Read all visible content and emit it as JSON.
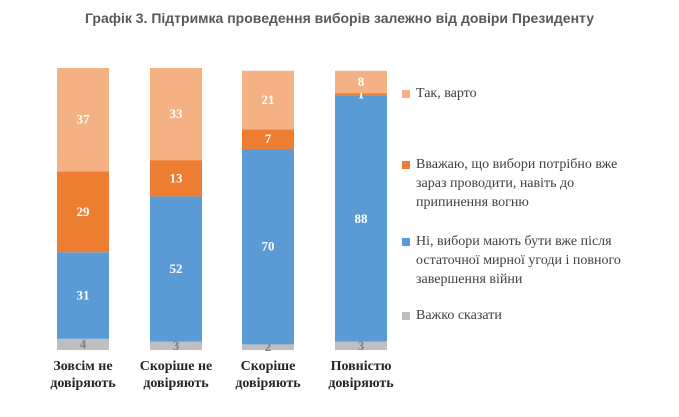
{
  "chart_data": {
    "type": "stacked_bar",
    "title": "Графік 3. Підтримка проведення виборів залежно від довіри Президенту",
    "categories": [
      "Зовсім не довіряють",
      "Скоріше не довіряють",
      "Скоріше довіряють",
      "Повністю довіряють"
    ],
    "series": [
      {
        "name": "Важко сказати",
        "color": "#bfbfbf",
        "values": [
          4,
          3,
          2,
          3
        ]
      },
      {
        "name": "Ні, вибори мають бути вже після остаточної мирної угоди і повного завершення війни",
        "color": "#5b9bd5",
        "values": [
          31,
          52,
          70,
          88
        ]
      },
      {
        "name": "Вважаю, що вибори потрібно вже зараз проводити, навіть до припинення вогню",
        "color": "#ed7d31",
        "values": [
          29,
          13,
          7,
          1
        ]
      },
      {
        "name": "Так, варто",
        "color": "#f4b183",
        "values": [
          37,
          33,
          21,
          8
        ]
      }
    ],
    "ylim": [
      0,
      101
    ]
  }
}
